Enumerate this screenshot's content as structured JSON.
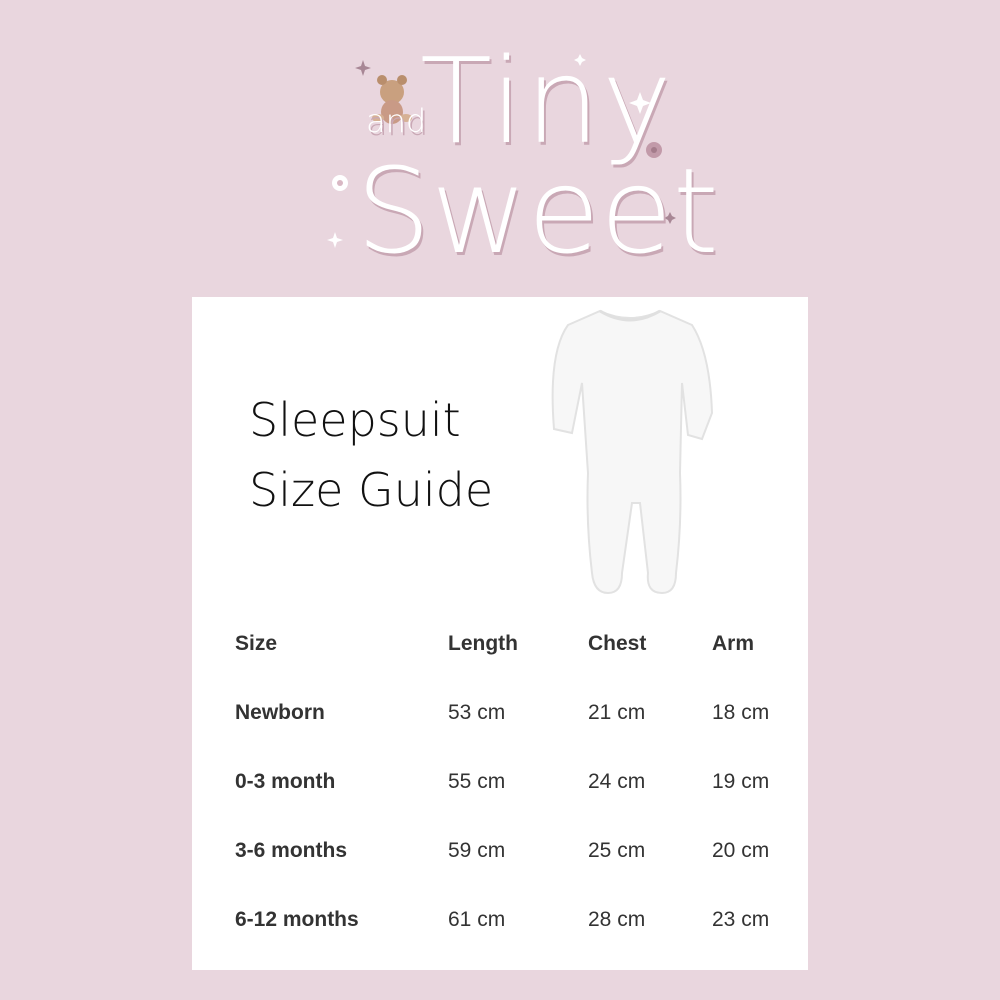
{
  "brand": {
    "line1": "Tiny",
    "connector": "and",
    "line2": "Sweet",
    "colors": {
      "background": "#e9d6de",
      "shadow": "#c9a8b5",
      "accent": "#b08a98"
    }
  },
  "guide": {
    "title_line1": "Sleepsuit",
    "title_line2": "Size Guide"
  },
  "table": {
    "headers": [
      "Size",
      "Length",
      "Chest",
      "Arm"
    ],
    "rows": [
      [
        "Newborn",
        "53 cm",
        "21 cm",
        "18 cm"
      ],
      [
        "0-3 month",
        "55 cm",
        "24 cm",
        "19 cm"
      ],
      [
        "3-6 months",
        "59 cm",
        "25 cm",
        "20 cm"
      ],
      [
        "6-12 months",
        "61 cm",
        "28 cm",
        "23 cm"
      ]
    ]
  }
}
